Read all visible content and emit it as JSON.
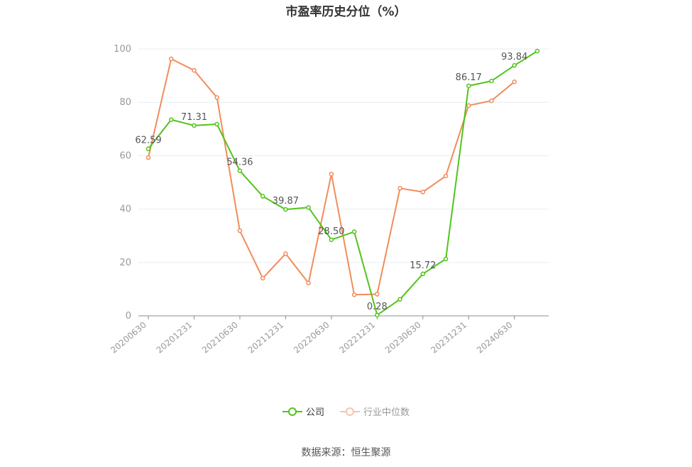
{
  "chart_data": {
    "type": "line",
    "title": "市盈率历史分位（%）",
    "categories": [
      "20200630",
      "20200930",
      "20201231",
      "20210331",
      "20210630",
      "20210930",
      "20211231",
      "20220331",
      "20220630",
      "20220930",
      "20221231",
      "20230331",
      "20230630",
      "20230930",
      "20231231",
      "20240331",
      "20240630",
      "20240930"
    ],
    "x_tick_labels": [
      "20200630",
      "20201231",
      "20210630",
      "20211231",
      "20220630",
      "20221231",
      "20230630",
      "20231231",
      "20240630"
    ],
    "ylim": [
      0,
      100
    ],
    "yticks": [
      0,
      20,
      40,
      60,
      80,
      100
    ],
    "grid": true,
    "legend_position": "bottom",
    "series": [
      {
        "name": "公司",
        "color": "#52c41a",
        "values": [
          62.59,
          73.5,
          71.31,
          71.8,
          54.36,
          44.8,
          39.87,
          40.6,
          28.5,
          31.5,
          0.28,
          6.2,
          15.72,
          21.3,
          86.17,
          88.0,
          93.84,
          99.2
        ],
        "labels": {
          "0": "62.59",
          "2": "71.31",
          "4": "54.36",
          "6": "39.87",
          "8": "28.50",
          "10": "0.28",
          "12": "15.72",
          "14": "86.17",
          "16": "93.84"
        }
      },
      {
        "name": "行业中位数",
        "color": "#f28c5a",
        "values": [
          59.3,
          96.3,
          92.0,
          81.8,
          31.9,
          14.1,
          23.3,
          12.3,
          53.1,
          7.9,
          8.1,
          47.8,
          46.4,
          52.4,
          78.8,
          80.6,
          87.7,
          null
        ]
      }
    ]
  },
  "source": "数据来源：恒生聚源"
}
